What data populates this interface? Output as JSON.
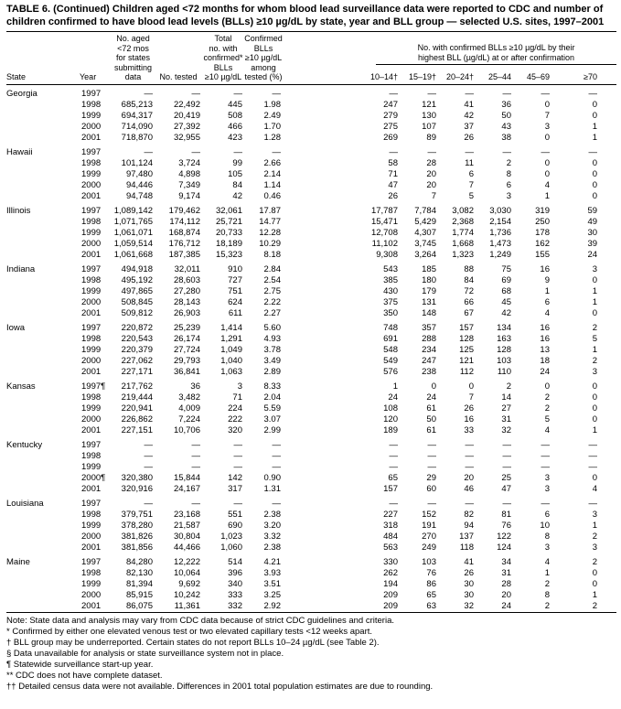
{
  "title": "TABLE 6. (Continued) Children aged <72 months for whom blood lead surveillance data were reported to CDC and number of\nchildren confirmed to have blood lead levels (BLLs) ≥10 µg/dL by state, year and BLL group — selected U.S. sites, 1997–2001",
  "colors": {
    "text": "#000000",
    "background": "#ffffff"
  },
  "table": {
    "columns": {
      "state": "State",
      "year": "Year",
      "no_aged": "No. aged\n<72 mos\nfor states\nsubmitting\ndata",
      "no_tested": "No. tested",
      "total_confirmed": "Total\nno. with\nconfirmed*\nBLLs\n≥10 µg/dL",
      "pct_tested": "Confirmed\nBLLs\n≥10 µg/dL\namong\ntested (%)",
      "group_header": "No. with confirmed BLLs ≥10 µg/dL by their\nhighest BLL (µg/dL) at or after confirmation",
      "bll_groups": [
        "10–14†",
        "15–19†",
        "20–24†",
        "25–44",
        "45–69",
        "≥70"
      ]
    },
    "states": [
      {
        "name": "Georgia",
        "rows": [
          {
            "year": "1997",
            "values": [
              "—",
              "—",
              "—",
              "—",
              "—",
              "—",
              "—",
              "—",
              "—",
              "—"
            ]
          },
          {
            "year": "1998",
            "values": [
              "685,213",
              "22,492",
              "445",
              "1.98",
              "247",
              "121",
              "41",
              "36",
              "0",
              "0"
            ]
          },
          {
            "year": "1999",
            "values": [
              "694,317",
              "20,419",
              "508",
              "2.49",
              "279",
              "130",
              "42",
              "50",
              "7",
              "0"
            ]
          },
          {
            "year": "2000",
            "values": [
              "714,090",
              "27,392",
              "466",
              "1.70",
              "275",
              "107",
              "37",
              "43",
              "3",
              "1"
            ]
          },
          {
            "year": "2001",
            "values": [
              "718,870",
              "32,955",
              "423",
              "1.28",
              "269",
              "89",
              "26",
              "38",
              "0",
              "1"
            ]
          }
        ]
      },
      {
        "name": "Hawaii",
        "rows": [
          {
            "year": "1997",
            "values": [
              "—",
              "—",
              "—",
              "—",
              "—",
              "—",
              "—",
              "—",
              "—",
              "—"
            ]
          },
          {
            "year": "1998",
            "values": [
              "101,124",
              "3,724",
              "99",
              "2.66",
              "58",
              "28",
              "11",
              "2",
              "0",
              "0"
            ]
          },
          {
            "year": "1999",
            "values": [
              "97,480",
              "4,898",
              "105",
              "2.14",
              "71",
              "20",
              "6",
              "8",
              "0",
              "0"
            ]
          },
          {
            "year": "2000",
            "values": [
              "94,446",
              "7,349",
              "84",
              "1.14",
              "47",
              "20",
              "7",
              "6",
              "4",
              "0"
            ]
          },
          {
            "year": "2001",
            "values": [
              "94,748",
              "9,174",
              "42",
              "0.46",
              "26",
              "7",
              "5",
              "3",
              "1",
              "0"
            ]
          }
        ]
      },
      {
        "name": "Illinois",
        "rows": [
          {
            "year": "1997",
            "values": [
              "1,089,142",
              "179,462",
              "32,061",
              "17.87",
              "17,787",
              "7,784",
              "3,082",
              "3,030",
              "319",
              "59"
            ]
          },
          {
            "year": "1998",
            "values": [
              "1,071,765",
              "174,112",
              "25,721",
              "14.77",
              "15,471",
              "5,429",
              "2,368",
              "2,154",
              "250",
              "49"
            ]
          },
          {
            "year": "1999",
            "values": [
              "1,061,071",
              "168,874",
              "20,733",
              "12.28",
              "12,708",
              "4,307",
              "1,774",
              "1,736",
              "178",
              "30"
            ]
          },
          {
            "year": "2000",
            "values": [
              "1,059,514",
              "176,712",
              "18,189",
              "10.29",
              "11,102",
              "3,745",
              "1,668",
              "1,473",
              "162",
              "39"
            ]
          },
          {
            "year": "2001",
            "values": [
              "1,061,668",
              "187,385",
              "15,323",
              "8.18",
              "9,308",
              "3,264",
              "1,323",
              "1,249",
              "155",
              "24"
            ]
          }
        ]
      },
      {
        "name": "Indiana",
        "rows": [
          {
            "year": "1997",
            "values": [
              "494,918",
              "32,011",
              "910",
              "2.84",
              "543",
              "185",
              "88",
              "75",
              "16",
              "3"
            ]
          },
          {
            "year": "1998",
            "values": [
              "495,192",
              "28,603",
              "727",
              "2.54",
              "385",
              "180",
              "84",
              "69",
              "9",
              "0"
            ]
          },
          {
            "year": "1999",
            "values": [
              "497,865",
              "27,280",
              "751",
              "2.75",
              "430",
              "179",
              "72",
              "68",
              "1",
              "1"
            ]
          },
          {
            "year": "2000",
            "values": [
              "508,845",
              "28,143",
              "624",
              "2.22",
              "375",
              "131",
              "66",
              "45",
              "6",
              "1"
            ]
          },
          {
            "year": "2001",
            "values": [
              "509,812",
              "26,903",
              "611",
              "2.27",
              "350",
              "148",
              "67",
              "42",
              "4",
              "0"
            ]
          }
        ]
      },
      {
        "name": "Iowa",
        "rows": [
          {
            "year": "1997",
            "values": [
              "220,872",
              "25,239",
              "1,414",
              "5.60",
              "748",
              "357",
              "157",
              "134",
              "16",
              "2"
            ]
          },
          {
            "year": "1998",
            "values": [
              "220,543",
              "26,174",
              "1,291",
              "4.93",
              "691",
              "288",
              "128",
              "163",
              "16",
              "5"
            ]
          },
          {
            "year": "1999",
            "values": [
              "220,379",
              "27,724",
              "1,049",
              "3.78",
              "548",
              "234",
              "125",
              "128",
              "13",
              "1"
            ]
          },
          {
            "year": "2000",
            "values": [
              "227,062",
              "29,793",
              "1,040",
              "3.49",
              "549",
              "247",
              "121",
              "103",
              "18",
              "2"
            ]
          },
          {
            "year": "2001",
            "values": [
              "227,171",
              "36,841",
              "1,063",
              "2.89",
              "576",
              "238",
              "112",
              "110",
              "24",
              "3"
            ]
          }
        ]
      },
      {
        "name": "Kansas",
        "rows": [
          {
            "year": "1997¶",
            "values": [
              "217,762",
              "36",
              "3",
              "8.33",
              "1",
              "0",
              "0",
              "2",
              "0",
              "0"
            ]
          },
          {
            "year": "1998",
            "values": [
              "219,444",
              "3,482",
              "71",
              "2.04",
              "24",
              "24",
              "7",
              "14",
              "2",
              "0"
            ]
          },
          {
            "year": "1999",
            "values": [
              "220,941",
              "4,009",
              "224",
              "5.59",
              "108",
              "61",
              "26",
              "27",
              "2",
              "0"
            ]
          },
          {
            "year": "2000",
            "values": [
              "226,862",
              "7,224",
              "222",
              "3.07",
              "120",
              "50",
              "16",
              "31",
              "5",
              "0"
            ]
          },
          {
            "year": "2001",
            "values": [
              "227,151",
              "10,706",
              "320",
              "2.99",
              "189",
              "61",
              "33",
              "32",
              "4",
              "1"
            ]
          }
        ]
      },
      {
        "name": "Kentucky",
        "rows": [
          {
            "year": "1997",
            "values": [
              "—",
              "—",
              "—",
              "—",
              "—",
              "—",
              "—",
              "—",
              "—",
              "—"
            ]
          },
          {
            "year": "1998",
            "values": [
              "—",
              "—",
              "—",
              "—",
              "—",
              "—",
              "—",
              "—",
              "—",
              "—"
            ]
          },
          {
            "year": "1999",
            "values": [
              "—",
              "—",
              "—",
              "—",
              "—",
              "—",
              "—",
              "—",
              "—",
              "—"
            ]
          },
          {
            "year": "2000¶",
            "values": [
              "320,380",
              "15,844",
              "142",
              "0.90",
              "65",
              "29",
              "20",
              "25",
              "3",
              "0"
            ]
          },
          {
            "year": "2001",
            "values": [
              "320,916",
              "24,167",
              "317",
              "1.31",
              "157",
              "60",
              "46",
              "47",
              "3",
              "4"
            ]
          }
        ]
      },
      {
        "name": "Louisiana",
        "rows": [
          {
            "year": "1997",
            "values": [
              "—",
              "—",
              "—",
              "—",
              "—",
              "—",
              "—",
              "—",
              "—",
              "—"
            ]
          },
          {
            "year": "1998",
            "values": [
              "379,751",
              "23,168",
              "551",
              "2.38",
              "227",
              "152",
              "82",
              "81",
              "6",
              "3"
            ]
          },
          {
            "year": "1999",
            "values": [
              "378,280",
              "21,587",
              "690",
              "3.20",
              "318",
              "191",
              "94",
              "76",
              "10",
              "1"
            ]
          },
          {
            "year": "2000",
            "values": [
              "381,826",
              "30,804",
              "1,023",
              "3.32",
              "484",
              "270",
              "137",
              "122",
              "8",
              "2"
            ]
          },
          {
            "year": "2001",
            "values": [
              "381,856",
              "44,466",
              "1,060",
              "2.38",
              "563",
              "249",
              "118",
              "124",
              "3",
              "3"
            ]
          }
        ]
      },
      {
        "name": "Maine",
        "rows": [
          {
            "year": "1997",
            "values": [
              "84,280",
              "12,222",
              "514",
              "4.21",
              "330",
              "103",
              "41",
              "34",
              "4",
              "2"
            ]
          },
          {
            "year": "1998",
            "values": [
              "82,130",
              "10,064",
              "396",
              "3.93",
              "262",
              "76",
              "26",
              "31",
              "1",
              "0"
            ]
          },
          {
            "year": "1999",
            "values": [
              "81,394",
              "9,692",
              "340",
              "3.51",
              "194",
              "86",
              "30",
              "28",
              "2",
              "0"
            ]
          },
          {
            "year": "2000",
            "values": [
              "85,915",
              "10,242",
              "333",
              "3.25",
              "209",
              "65",
              "30",
              "20",
              "8",
              "1"
            ]
          },
          {
            "year": "2001",
            "values": [
              "86,075",
              "11,361",
              "332",
              "2.92",
              "209",
              "63",
              "32",
              "24",
              "2",
              "2"
            ]
          }
        ]
      }
    ]
  },
  "footnotes": [
    "Note: State data and analysis may vary from CDC data because of strict CDC guidelines and criteria.",
    "* Confirmed by either one elevated venous test or two elevated capillary tests <12 weeks apart.",
    "† BLL group may be underreported. Certain states do not report BLLs 10–24 µg/dL (see Table 2).",
    "§ Data unavailable for analysis or state surveillance system not in place.",
    "¶ Statewide surveillance start-up year.",
    "** CDC does not have complete dataset.",
    "†† Detailed census data were not available. Differences in 2001 total population estimates are due to rounding."
  ]
}
